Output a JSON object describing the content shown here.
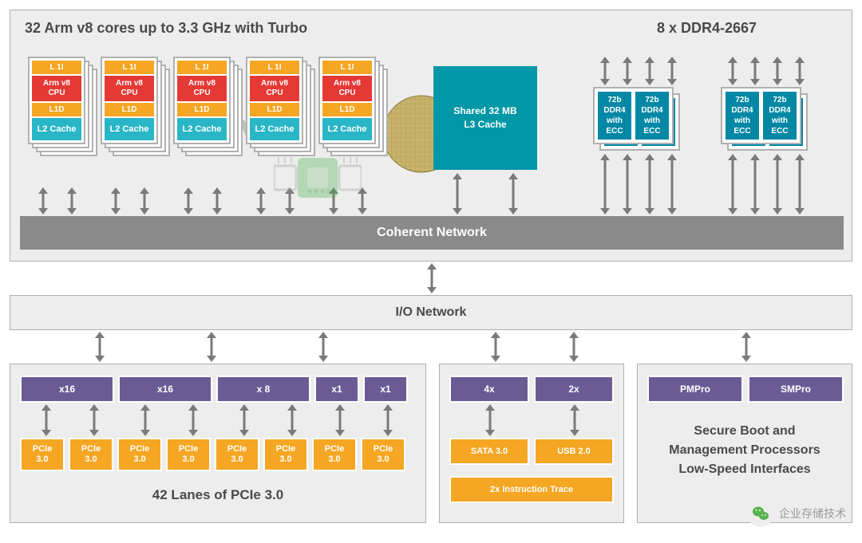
{
  "type": "block-diagram",
  "colors": {
    "panel_bg": "#ededed",
    "panel_border": "#b0b0b0",
    "orange": "#f5a623",
    "red": "#e53935",
    "teal_light": "#29b6c6",
    "teal_dark": "#0097a7",
    "teal_ddr": "#0288a5",
    "purple": "#6b5b95",
    "gray_bar": "#8a8a8a",
    "label_text": "#4a4a4a",
    "arrow": "#7a7a7a"
  },
  "top_panel": {
    "title_left": "32 Arm v8 cores up to 3.3 GHz with Turbo",
    "title_right": "8 x DDR4-2667",
    "cpu": {
      "l1i": "L 1I",
      "core": "Arm v8\nCPU",
      "l1d": "L1D",
      "l2": "L2 Cache",
      "stack_count": 5,
      "layers_per_stack": 4
    },
    "l3": "Shared 32 MB\nL3 Cache",
    "ddr_cell": "72b\nDDR4\nwith\nECC",
    "coherent": "Coherent Network"
  },
  "io_network": "I/O Network",
  "pcie_panel": {
    "lanes": [
      "x16",
      "x16",
      "x 8",
      "x1",
      "x1"
    ],
    "pcie_label": "PCIe\n3.0",
    "pcie_count": 8,
    "caption": "42 Lanes of PCIe 3.0"
  },
  "middle_panel": {
    "top": [
      "4x",
      "2x"
    ],
    "mid": [
      "SATA 3.0",
      "USB 2.0"
    ],
    "bottom": "2x Instruction Trace"
  },
  "mgmt_panel": {
    "top": [
      "PMPro",
      "SMPro"
    ],
    "caption": "Secure Boot and\nManagement Processors\nLow-Speed Interfaces"
  },
  "wechat_label": "企业存储技术",
  "watermark_text": "Wiki"
}
